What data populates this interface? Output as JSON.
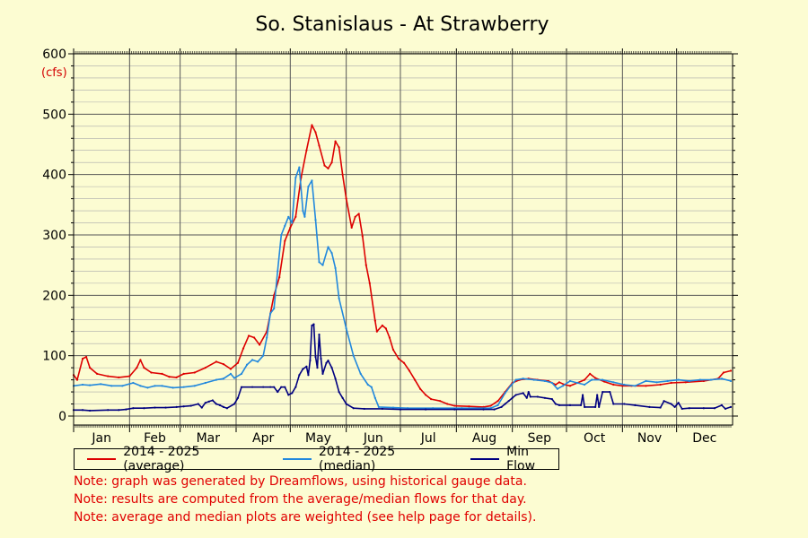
{
  "chart_data": {
    "type": "line",
    "title": "So. Stanislaus - At Strawberry",
    "ylabel": "(cfs)",
    "xlabel": "",
    "ylim": [
      0,
      600
    ],
    "yticks": [
      0,
      100,
      200,
      300,
      400,
      500,
      600
    ],
    "grid": true,
    "legend_position": "bottom",
    "xlim_day": [
      1,
      366
    ],
    "months": [
      {
        "label": "Jan",
        "start": 1,
        "end": 32
      },
      {
        "label": "Feb",
        "start": 32,
        "end": 60
      },
      {
        "label": "Mar",
        "start": 60,
        "end": 91
      },
      {
        "label": "Apr",
        "start": 91,
        "end": 121
      },
      {
        "label": "May",
        "start": 121,
        "end": 152
      },
      {
        "label": "Jun",
        "start": 152,
        "end": 182
      },
      {
        "label": "Jul",
        "start": 182,
        "end": 213
      },
      {
        "label": "Aug",
        "start": 213,
        "end": 244
      },
      {
        "label": "Sep",
        "start": 244,
        "end": 274
      },
      {
        "label": "Oct",
        "start": 274,
        "end": 305
      },
      {
        "label": "Nov",
        "start": 305,
        "end": 335
      },
      {
        "label": "Dec",
        "start": 335,
        "end": 366
      }
    ],
    "series": [
      {
        "name": "2014 - 2025 (average)",
        "color": "#dd0000",
        "points": [
          [
            1,
            68
          ],
          [
            3,
            60
          ],
          [
            6,
            95
          ],
          [
            8,
            98
          ],
          [
            10,
            80
          ],
          [
            14,
            70
          ],
          [
            20,
            66
          ],
          [
            26,
            64
          ],
          [
            32,
            66
          ],
          [
            36,
            80
          ],
          [
            38,
            93
          ],
          [
            40,
            80
          ],
          [
            44,
            72
          ],
          [
            50,
            70
          ],
          [
            54,
            65
          ],
          [
            58,
            64
          ],
          [
            62,
            70
          ],
          [
            68,
            72
          ],
          [
            74,
            80
          ],
          [
            80,
            90
          ],
          [
            84,
            86
          ],
          [
            88,
            78
          ],
          [
            92,
            88
          ],
          [
            95,
            112
          ],
          [
            98,
            133
          ],
          [
            101,
            130
          ],
          [
            104,
            118
          ],
          [
            108,
            140
          ],
          [
            112,
            200
          ],
          [
            115,
            230
          ],
          [
            118,
            290
          ],
          [
            121,
            312
          ],
          [
            124,
            330
          ],
          [
            127,
            395
          ],
          [
            130,
            440
          ],
          [
            133,
            482
          ],
          [
            135,
            470
          ],
          [
            137,
            448
          ],
          [
            140,
            415
          ],
          [
            142,
            410
          ],
          [
            144,
            420
          ],
          [
            146,
            455
          ],
          [
            148,
            445
          ],
          [
            150,
            400
          ],
          [
            152,
            360
          ],
          [
            155,
            312
          ],
          [
            157,
            330
          ],
          [
            159,
            335
          ],
          [
            161,
            298
          ],
          [
            163,
            250
          ],
          [
            165,
            220
          ],
          [
            168,
            158
          ],
          [
            169,
            140
          ],
          [
            172,
            150
          ],
          [
            174,
            145
          ],
          [
            176,
            130
          ],
          [
            178,
            110
          ],
          [
            181,
            95
          ],
          [
            184,
            88
          ],
          [
            187,
            75
          ],
          [
            190,
            60
          ],
          [
            193,
            45
          ],
          [
            196,
            35
          ],
          [
            199,
            28
          ],
          [
            204,
            25
          ],
          [
            208,
            20
          ],
          [
            212,
            17
          ],
          [
            220,
            16
          ],
          [
            228,
            15
          ],
          [
            232,
            17
          ],
          [
            236,
            25
          ],
          [
            240,
            40
          ],
          [
            244,
            55
          ],
          [
            248,
            60
          ],
          [
            253,
            62
          ],
          [
            258,
            60
          ],
          [
            264,
            58
          ],
          [
            268,
            52
          ],
          [
            270,
            56
          ],
          [
            273,
            52
          ],
          [
            276,
            50
          ],
          [
            280,
            55
          ],
          [
            284,
            60
          ],
          [
            287,
            70
          ],
          [
            290,
            63
          ],
          [
            295,
            57
          ],
          [
            300,
            52
          ],
          [
            305,
            50
          ],
          [
            310,
            50
          ],
          [
            318,
            50
          ],
          [
            326,
            52
          ],
          [
            332,
            55
          ],
          [
            340,
            56
          ],
          [
            350,
            58
          ],
          [
            358,
            62
          ],
          [
            361,
            72
          ],
          [
            365,
            75
          ]
        ]
      },
      {
        "name": "2014 - 2025 (median)",
        "color": "#2288dd",
        "points": [
          [
            1,
            50
          ],
          [
            6,
            52
          ],
          [
            10,
            51
          ],
          [
            16,
            53
          ],
          [
            22,
            50
          ],
          [
            28,
            50
          ],
          [
            34,
            55
          ],
          [
            38,
            50
          ],
          [
            42,
            47
          ],
          [
            46,
            50
          ],
          [
            50,
            50
          ],
          [
            56,
            47
          ],
          [
            62,
            48
          ],
          [
            68,
            50
          ],
          [
            74,
            55
          ],
          [
            80,
            60
          ],
          [
            84,
            62
          ],
          [
            88,
            70
          ],
          [
            90,
            63
          ],
          [
            94,
            70
          ],
          [
            97,
            85
          ],
          [
            100,
            93
          ],
          [
            103,
            90
          ],
          [
            106,
            100
          ],
          [
            108,
            130
          ],
          [
            110,
            170
          ],
          [
            112,
            178
          ],
          [
            114,
            240
          ],
          [
            116,
            300
          ],
          [
            118,
            315
          ],
          [
            120,
            330
          ],
          [
            122,
            320
          ],
          [
            124,
            395
          ],
          [
            126,
            412
          ],
          [
            128,
            340
          ],
          [
            129,
            330
          ],
          [
            131,
            380
          ],
          [
            133,
            390
          ],
          [
            135,
            325
          ],
          [
            137,
            255
          ],
          [
            139,
            250
          ],
          [
            142,
            280
          ],
          [
            144,
            270
          ],
          [
            146,
            245
          ],
          [
            148,
            195
          ],
          [
            152,
            145
          ],
          [
            156,
            100
          ],
          [
            160,
            70
          ],
          [
            164,
            52
          ],
          [
            166,
            48
          ],
          [
            168,
            30
          ],
          [
            170,
            15
          ],
          [
            178,
            14
          ],
          [
            186,
            13
          ],
          [
            200,
            13
          ],
          [
            216,
            13
          ],
          [
            232,
            13
          ],
          [
            236,
            18
          ],
          [
            240,
            38
          ],
          [
            243,
            50
          ],
          [
            246,
            60
          ],
          [
            250,
            62
          ],
          [
            256,
            60
          ],
          [
            262,
            58
          ],
          [
            266,
            55
          ],
          [
            269,
            45
          ],
          [
            272,
            50
          ],
          [
            276,
            58
          ],
          [
            280,
            55
          ],
          [
            284,
            52
          ],
          [
            288,
            60
          ],
          [
            294,
            60
          ],
          [
            300,
            56
          ],
          [
            306,
            52
          ],
          [
            312,
            50
          ],
          [
            318,
            58
          ],
          [
            324,
            56
          ],
          [
            330,
            58
          ],
          [
            336,
            60
          ],
          [
            342,
            58
          ],
          [
            348,
            60
          ],
          [
            354,
            60
          ],
          [
            360,
            62
          ],
          [
            365,
            58
          ]
        ]
      },
      {
        "name": "Min Flow",
        "color": "#000080",
        "points": [
          [
            1,
            10
          ],
          [
            6,
            10
          ],
          [
            10,
            9
          ],
          [
            20,
            10
          ],
          [
            26,
            10
          ],
          [
            30,
            11
          ],
          [
            34,
            13
          ],
          [
            40,
            13
          ],
          [
            46,
            14
          ],
          [
            52,
            14
          ],
          [
            58,
            15
          ],
          [
            62,
            16
          ],
          [
            66,
            17
          ],
          [
            70,
            20
          ],
          [
            72,
            14
          ],
          [
            74,
            22
          ],
          [
            76,
            24
          ],
          [
            78,
            26
          ],
          [
            80,
            20
          ],
          [
            82,
            18
          ],
          [
            84,
            15
          ],
          [
            86,
            13
          ],
          [
            90,
            20
          ],
          [
            92,
            30
          ],
          [
            94,
            48
          ],
          [
            100,
            48
          ],
          [
            106,
            48
          ],
          [
            110,
            48
          ],
          [
            112,
            48
          ],
          [
            114,
            40
          ],
          [
            116,
            48
          ],
          [
            118,
            48
          ],
          [
            120,
            35
          ],
          [
            122,
            38
          ],
          [
            124,
            48
          ],
          [
            126,
            68
          ],
          [
            128,
            78
          ],
          [
            130,
            82
          ],
          [
            131,
            68
          ],
          [
            132,
            92
          ],
          [
            133,
            150
          ],
          [
            134,
            152
          ],
          [
            135,
            98
          ],
          [
            136,
            80
          ],
          [
            137,
            135
          ],
          [
            138,
            95
          ],
          [
            139,
            70
          ],
          [
            141,
            88
          ],
          [
            142,
            92
          ],
          [
            144,
            80
          ],
          [
            146,
            62
          ],
          [
            148,
            40
          ],
          [
            150,
            30
          ],
          [
            152,
            20
          ],
          [
            156,
            13
          ],
          [
            162,
            12
          ],
          [
            172,
            12
          ],
          [
            182,
            11
          ],
          [
            196,
            11
          ],
          [
            212,
            11
          ],
          [
            228,
            11
          ],
          [
            234,
            11
          ],
          [
            238,
            15
          ],
          [
            240,
            20
          ],
          [
            242,
            25
          ],
          [
            244,
            30
          ],
          [
            246,
            35
          ],
          [
            250,
            38
          ],
          [
            252,
            30
          ],
          [
            253,
            40
          ],
          [
            254,
            32
          ],
          [
            258,
            32
          ],
          [
            262,
            30
          ],
          [
            266,
            28
          ],
          [
            268,
            20
          ],
          [
            270,
            18
          ],
          [
            276,
            18
          ],
          [
            282,
            18
          ],
          [
            283,
            35
          ],
          [
            284,
            15
          ],
          [
            290,
            15
          ],
          [
            291,
            35
          ],
          [
            292,
            15
          ],
          [
            294,
            40
          ],
          [
            298,
            40
          ],
          [
            300,
            20
          ],
          [
            306,
            20
          ],
          [
            312,
            18
          ],
          [
            320,
            15
          ],
          [
            326,
            14
          ],
          [
            328,
            25
          ],
          [
            332,
            20
          ],
          [
            334,
            15
          ],
          [
            336,
            22
          ],
          [
            338,
            12
          ],
          [
            342,
            13
          ],
          [
            350,
            13
          ],
          [
            356,
            13
          ],
          [
            360,
            18
          ],
          [
            362,
            12
          ],
          [
            365,
            15
          ]
        ]
      }
    ],
    "notes": [
      "Note: graph was generated by Dreamflows, using historical gauge data.",
      "Note: results are computed from the average/median flows for that day.",
      "Note: average and median plots are weighted (see help page for details)."
    ]
  }
}
